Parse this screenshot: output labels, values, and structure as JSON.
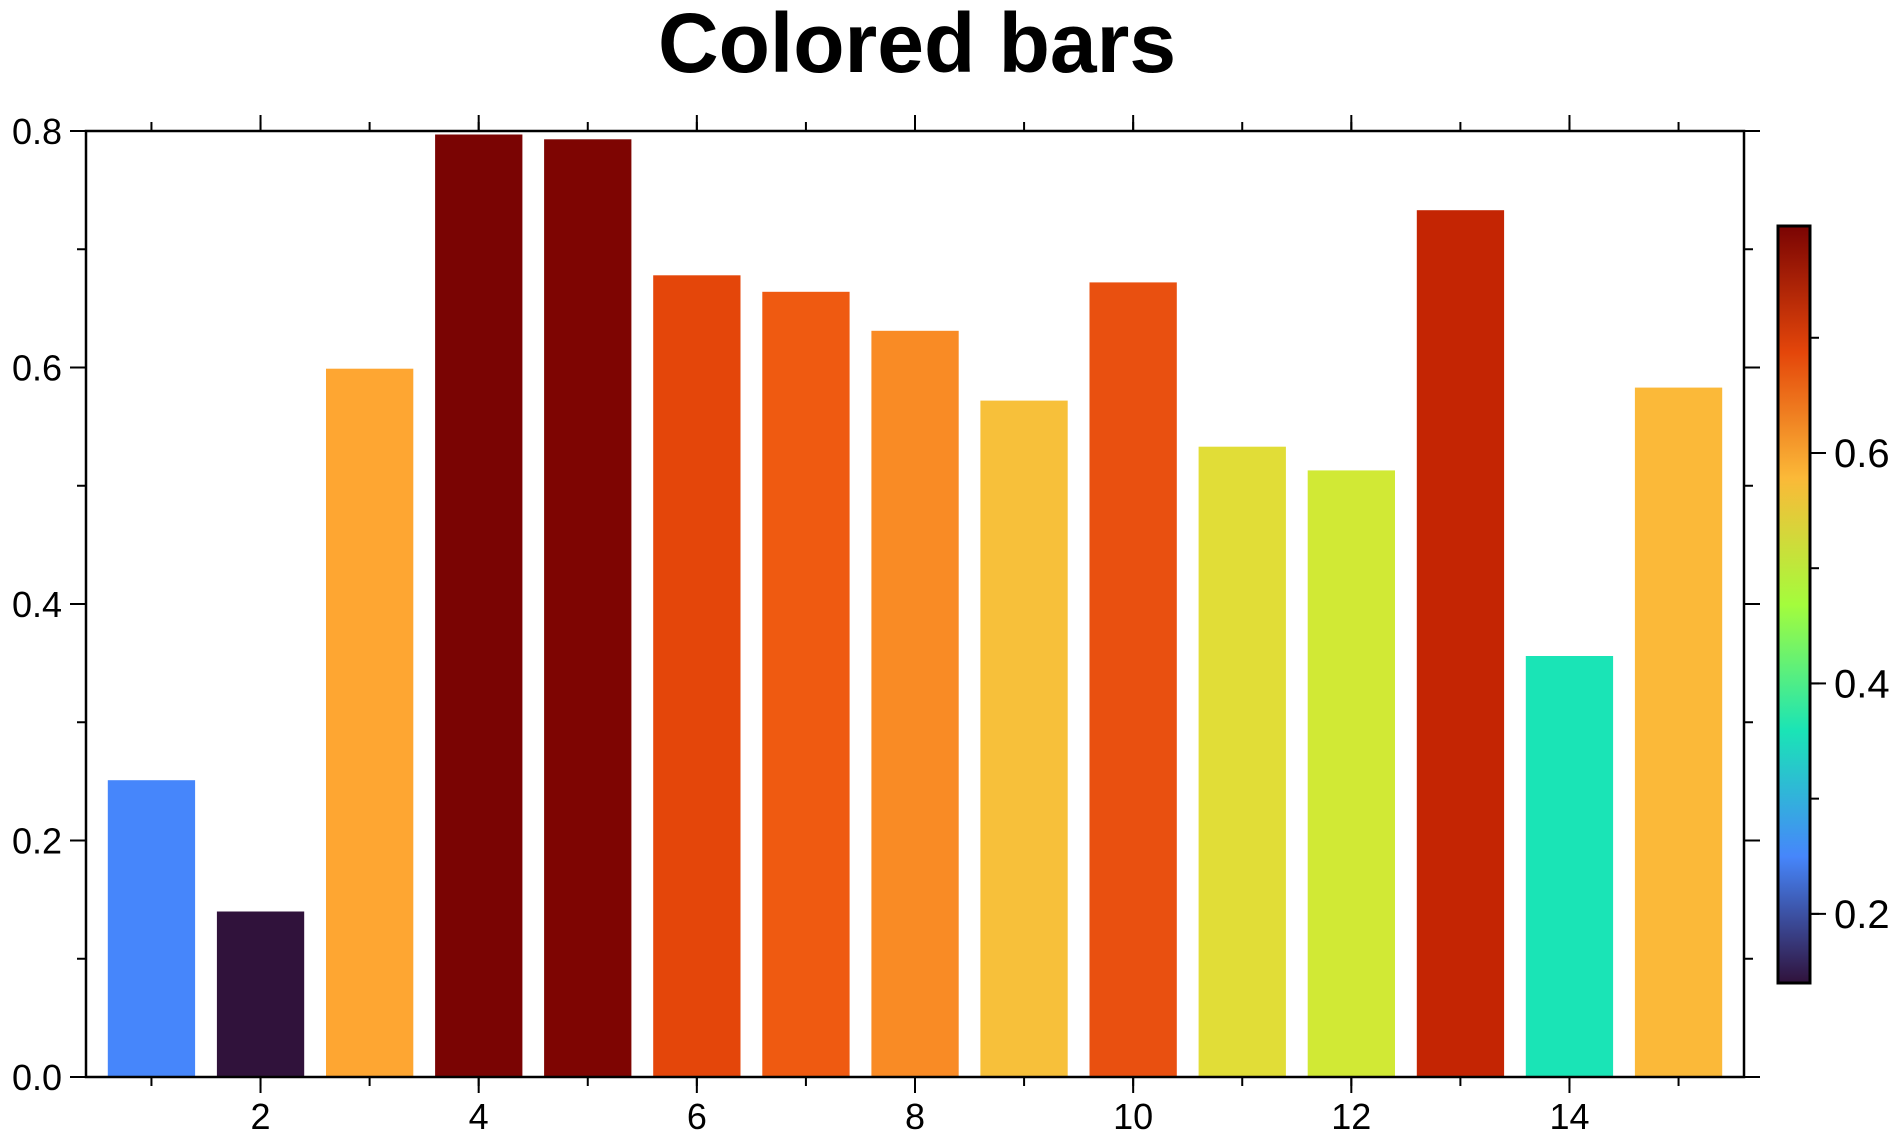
{
  "chart_data": {
    "type": "bar",
    "title": "Colored bars",
    "xlabel": "",
    "ylabel": "",
    "xlim": [
      0.4,
      15.6
    ],
    "ylim": [
      0,
      0.8
    ],
    "x": [
      1,
      2,
      3,
      4,
      5,
      6,
      7,
      8,
      9,
      10,
      11,
      12,
      13,
      14,
      15
    ],
    "values": [
      0.251,
      0.14,
      0.599,
      0.797,
      0.793,
      0.678,
      0.664,
      0.631,
      0.572,
      0.672,
      0.533,
      0.513,
      0.733,
      0.356,
      0.583
    ],
    "bar_colors": [
      "#4686fb",
      "#30123b",
      "#fea632",
      "#7a0403",
      "#7e0502",
      "#e4460a",
      "#ef5a11",
      "#f98b25",
      "#f7c03a",
      "#e95010",
      "#e1dd37",
      "#d1e935",
      "#c42503",
      "#1ae4b6",
      "#fbb939"
    ],
    "x_ticks": [
      2,
      4,
      6,
      8,
      10,
      12,
      14
    ],
    "y_ticks": [
      0.0,
      0.2,
      0.4,
      0.6,
      0.8
    ],
    "y_tick_labels": [
      "0.0",
      "0.2",
      "0.4",
      "0.6",
      "0.8"
    ],
    "grid": false,
    "legend": "none",
    "colorbar": {
      "orientation": "vertical",
      "placement": "right",
      "range": [
        0.14,
        0.797
      ],
      "ticks": [
        0.2,
        0.4,
        0.6
      ],
      "tick_labels": [
        "0.2",
        "0.4",
        "0.6"
      ],
      "colormap": "turbo",
      "colors": [
        "#30123b",
        "#4686fb",
        "#1ae4b6",
        "#a4fc3c",
        "#fbb938",
        "#e4460a",
        "#7a0403"
      ]
    }
  }
}
